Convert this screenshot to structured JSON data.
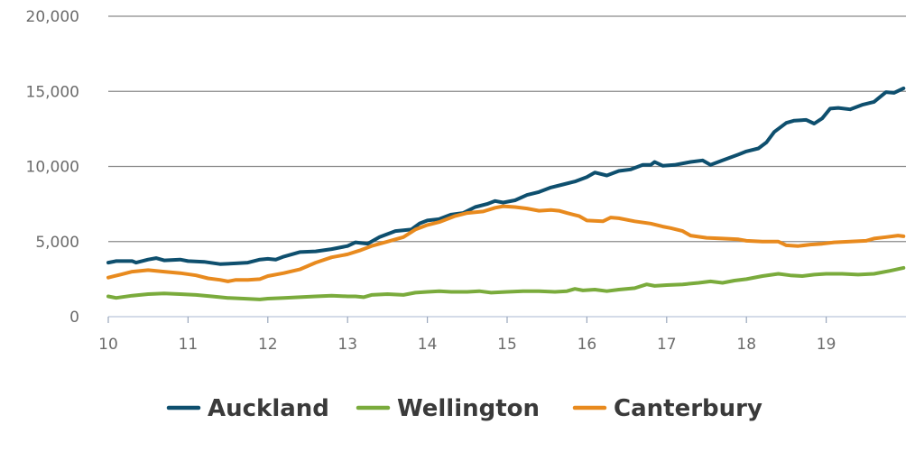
{
  "chart_data": {
    "type": "line",
    "title": "",
    "xlabel": "",
    "ylabel": "",
    "xlim": [
      10,
      20
    ],
    "ylim": [
      0,
      20000
    ],
    "x_ticks": [
      "10",
      "11",
      "12",
      "13",
      "14",
      "15",
      "16",
      "17",
      "18",
      "19"
    ],
    "y_ticks": [
      "0",
      "5,000",
      "10,000",
      "15,000",
      "20,000"
    ],
    "grid": "horizontal",
    "legend_position": "bottom",
    "series": [
      {
        "name": "Auckland",
        "color": "#0e4f6e",
        "points": [
          [
            10.0,
            3600
          ],
          [
            10.1,
            3700
          ],
          [
            10.3,
            3700
          ],
          [
            10.35,
            3600
          ],
          [
            10.5,
            3800
          ],
          [
            10.6,
            3900
          ],
          [
            10.7,
            3750
          ],
          [
            10.9,
            3800
          ],
          [
            11.0,
            3700
          ],
          [
            11.2,
            3650
          ],
          [
            11.4,
            3500
          ],
          [
            11.6,
            3550
          ],
          [
            11.75,
            3600
          ],
          [
            11.9,
            3800
          ],
          [
            12.0,
            3850
          ],
          [
            12.1,
            3800
          ],
          [
            12.2,
            4000
          ],
          [
            12.4,
            4300
          ],
          [
            12.6,
            4350
          ],
          [
            12.8,
            4500
          ],
          [
            13.0,
            4700
          ],
          [
            13.1,
            4950
          ],
          [
            13.25,
            4850
          ],
          [
            13.4,
            5300
          ],
          [
            13.6,
            5700
          ],
          [
            13.8,
            5800
          ],
          [
            13.9,
            6200
          ],
          [
            14.0,
            6400
          ],
          [
            14.15,
            6500
          ],
          [
            14.3,
            6800
          ],
          [
            14.45,
            6900
          ],
          [
            14.6,
            7300
          ],
          [
            14.75,
            7500
          ],
          [
            14.85,
            7700
          ],
          [
            14.95,
            7600
          ],
          [
            15.1,
            7750
          ],
          [
            15.25,
            8100
          ],
          [
            15.4,
            8300
          ],
          [
            15.55,
            8600
          ],
          [
            15.7,
            8800
          ],
          [
            15.85,
            9000
          ],
          [
            16.0,
            9300
          ],
          [
            16.1,
            9600
          ],
          [
            16.25,
            9400
          ],
          [
            16.4,
            9700
          ],
          [
            16.55,
            9800
          ],
          [
            16.7,
            10100
          ],
          [
            16.8,
            10100
          ],
          [
            16.85,
            10300
          ],
          [
            16.95,
            10050
          ],
          [
            17.1,
            10100
          ],
          [
            17.3,
            10300
          ],
          [
            17.45,
            10400
          ],
          [
            17.55,
            10100
          ],
          [
            17.7,
            10400
          ],
          [
            17.9,
            10800
          ],
          [
            18.0,
            11000
          ],
          [
            18.15,
            11200
          ],
          [
            18.25,
            11600
          ],
          [
            18.35,
            12300
          ],
          [
            18.5,
            12900
          ],
          [
            18.6,
            13050
          ],
          [
            18.75,
            13100
          ],
          [
            18.85,
            12850
          ],
          [
            18.95,
            13200
          ],
          [
            19.05,
            13850
          ],
          [
            19.15,
            13900
          ],
          [
            19.3,
            13800
          ],
          [
            19.45,
            14100
          ],
          [
            19.6,
            14300
          ],
          [
            19.75,
            14950
          ],
          [
            19.85,
            14900
          ],
          [
            19.97,
            15200
          ]
        ]
      },
      {
        "name": "Wellington",
        "color": "#7aab3c",
        "points": [
          [
            10.0,
            1350
          ],
          [
            10.1,
            1250
          ],
          [
            10.3,
            1400
          ],
          [
            10.5,
            1500
          ],
          [
            10.7,
            1550
          ],
          [
            10.9,
            1500
          ],
          [
            11.1,
            1450
          ],
          [
            11.3,
            1350
          ],
          [
            11.5,
            1250
          ],
          [
            11.7,
            1200
          ],
          [
            11.9,
            1150
          ],
          [
            12.0,
            1200
          ],
          [
            12.2,
            1250
          ],
          [
            12.4,
            1300
          ],
          [
            12.6,
            1350
          ],
          [
            12.8,
            1400
          ],
          [
            13.0,
            1350
          ],
          [
            13.1,
            1350
          ],
          [
            13.2,
            1300
          ],
          [
            13.3,
            1450
          ],
          [
            13.5,
            1500
          ],
          [
            13.7,
            1450
          ],
          [
            13.85,
            1600
          ],
          [
            14.0,
            1650
          ],
          [
            14.15,
            1700
          ],
          [
            14.3,
            1650
          ],
          [
            14.5,
            1650
          ],
          [
            14.65,
            1700
          ],
          [
            14.8,
            1600
          ],
          [
            15.0,
            1650
          ],
          [
            15.2,
            1700
          ],
          [
            15.4,
            1700
          ],
          [
            15.6,
            1650
          ],
          [
            15.75,
            1700
          ],
          [
            15.85,
            1850
          ],
          [
            15.95,
            1750
          ],
          [
            16.1,
            1800
          ],
          [
            16.25,
            1700
          ],
          [
            16.4,
            1800
          ],
          [
            16.6,
            1900
          ],
          [
            16.75,
            2150
          ],
          [
            16.85,
            2050
          ],
          [
            17.0,
            2100
          ],
          [
            17.2,
            2150
          ],
          [
            17.4,
            2250
          ],
          [
            17.55,
            2350
          ],
          [
            17.7,
            2250
          ],
          [
            17.85,
            2400
          ],
          [
            18.0,
            2500
          ],
          [
            18.2,
            2700
          ],
          [
            18.4,
            2850
          ],
          [
            18.55,
            2750
          ],
          [
            18.7,
            2700
          ],
          [
            18.85,
            2800
          ],
          [
            19.0,
            2850
          ],
          [
            19.2,
            2850
          ],
          [
            19.4,
            2800
          ],
          [
            19.6,
            2850
          ],
          [
            19.8,
            3050
          ],
          [
            19.97,
            3250
          ]
        ]
      },
      {
        "name": "Canterbury",
        "color": "#e88a1e",
        "points": [
          [
            10.0,
            2600
          ],
          [
            10.15,
            2800
          ],
          [
            10.3,
            3000
          ],
          [
            10.5,
            3100
          ],
          [
            10.7,
            3000
          ],
          [
            10.9,
            2900
          ],
          [
            11.1,
            2750
          ],
          [
            11.25,
            2550
          ],
          [
            11.4,
            2450
          ],
          [
            11.5,
            2350
          ],
          [
            11.6,
            2450
          ],
          [
            11.75,
            2450
          ],
          [
            11.9,
            2500
          ],
          [
            12.0,
            2700
          ],
          [
            12.2,
            2900
          ],
          [
            12.4,
            3150
          ],
          [
            12.6,
            3600
          ],
          [
            12.8,
            3950
          ],
          [
            13.0,
            4150
          ],
          [
            13.15,
            4400
          ],
          [
            13.3,
            4700
          ],
          [
            13.5,
            5000
          ],
          [
            13.7,
            5300
          ],
          [
            13.85,
            5800
          ],
          [
            14.0,
            6100
          ],
          [
            14.15,
            6300
          ],
          [
            14.35,
            6700
          ],
          [
            14.5,
            6900
          ],
          [
            14.7,
            7000
          ],
          [
            14.85,
            7250
          ],
          [
            14.95,
            7350
          ],
          [
            15.1,
            7300
          ],
          [
            15.25,
            7200
          ],
          [
            15.4,
            7050
          ],
          [
            15.55,
            7100
          ],
          [
            15.65,
            7050
          ],
          [
            15.75,
            6900
          ],
          [
            15.9,
            6700
          ],
          [
            16.0,
            6400
          ],
          [
            16.2,
            6350
          ],
          [
            16.3,
            6600
          ],
          [
            16.4,
            6550
          ],
          [
            16.6,
            6350
          ],
          [
            16.8,
            6200
          ],
          [
            16.95,
            6000
          ],
          [
            17.05,
            5900
          ],
          [
            17.2,
            5700
          ],
          [
            17.3,
            5400
          ],
          [
            17.5,
            5250
          ],
          [
            17.7,
            5200
          ],
          [
            17.9,
            5150
          ],
          [
            18.0,
            5050
          ],
          [
            18.2,
            5000
          ],
          [
            18.4,
            5000
          ],
          [
            18.5,
            4750
          ],
          [
            18.65,
            4700
          ],
          [
            18.8,
            4800
          ],
          [
            18.95,
            4850
          ],
          [
            19.1,
            4950
          ],
          [
            19.3,
            5000
          ],
          [
            19.5,
            5050
          ],
          [
            19.6,
            5200
          ],
          [
            19.75,
            5300
          ],
          [
            19.9,
            5400
          ],
          [
            19.97,
            5350
          ]
        ]
      }
    ]
  }
}
